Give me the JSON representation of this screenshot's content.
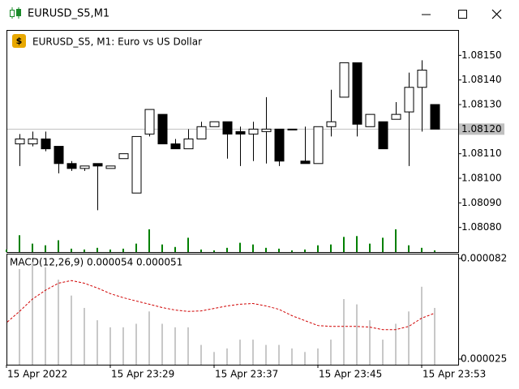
{
  "window": {
    "title": "EURUSD_S5,M1"
  },
  "chart_data": [
    {
      "type": "candlestick",
      "title": "EURUSD_S5, M1:  Euro vs US Dollar",
      "categories": [
        "15 Apr 2022",
        null,
        null,
        null,
        null,
        null,
        null,
        null,
        "15 Apr 23:29",
        null,
        null,
        null,
        null,
        null,
        null,
        null,
        "15 Apr 23:37",
        null,
        null,
        null,
        null,
        null,
        null,
        null,
        "15 Apr 23:45",
        null,
        null,
        null,
        null,
        null,
        null,
        null,
        "15 Apr 23:53",
        null
      ],
      "open": [
        1.0811,
        1.08114,
        1.08114,
        1.08116,
        1.08113,
        1.08106,
        1.08104,
        1.08106,
        1.08104,
        1.08108,
        1.08094,
        1.08118,
        1.08126,
        1.08114,
        1.08112,
        1.08116,
        1.08121,
        1.08123,
        1.08119,
        1.08118,
        1.08119,
        1.0812,
        1.0812,
        1.08107,
        1.08106,
        1.08121,
        1.08133,
        1.08147,
        1.08121,
        1.08123,
        1.08124,
        1.08127,
        1.08137,
        1.0813
      ],
      "high": [
        1.08114,
        1.08118,
        1.08119,
        1.08119,
        1.08113,
        1.08107,
        1.08105,
        1.08106,
        1.08105,
        1.0811,
        1.08117,
        1.08128,
        1.08126,
        1.08116,
        1.0812,
        1.08123,
        1.08123,
        1.08123,
        1.08121,
        1.08123,
        1.08133,
        1.0812,
        1.0812,
        1.08121,
        1.08121,
        1.08136,
        1.08147,
        1.08147,
        1.08126,
        1.08123,
        1.08131,
        1.08143,
        1.08148,
        1.0813
      ],
      "low": [
        1.0811,
        1.08105,
        1.08113,
        1.08111,
        1.08102,
        1.08103,
        1.08103,
        1.08087,
        1.08104,
        1.08108,
        1.08094,
        1.08117,
        1.08114,
        1.08112,
        1.08112,
        1.08116,
        1.08121,
        1.08108,
        1.08105,
        1.08107,
        1.08106,
        1.08105,
        1.0812,
        1.08106,
        1.08106,
        1.08117,
        1.08133,
        1.08117,
        1.08121,
        1.08112,
        1.08124,
        1.08105,
        1.08119,
        1.0812
      ],
      "close": [
        1.08114,
        1.08116,
        1.08116,
        1.08112,
        1.08106,
        1.08104,
        1.08105,
        1.08105,
        1.08105,
        1.0811,
        1.08117,
        1.08128,
        1.08114,
        1.08112,
        1.08116,
        1.08121,
        1.08123,
        1.08118,
        1.08118,
        1.0812,
        1.0812,
        1.08107,
        1.0812,
        1.08106,
        1.08121,
        1.08123,
        1.08147,
        1.08122,
        1.08126,
        1.08112,
        1.08126,
        1.08137,
        1.08144,
        1.0812
      ],
      "volume": [
        3,
        20,
        10,
        8,
        14,
        4,
        3,
        5,
        3,
        4,
        10,
        27,
        9,
        6,
        17,
        3,
        2,
        5,
        11,
        9,
        5,
        4,
        2,
        3,
        8,
        9,
        18,
        19,
        10,
        17,
        27,
        8,
        5,
        2
      ],
      "up_color": "#ffffff",
      "down_color": "#000000",
      "volume_color": "#008000",
      "ylim": [
        1.0807,
        1.0816
      ],
      "yticks": [
        {
          "value": 1.0815,
          "label": "1.08150"
        },
        {
          "value": 1.0814,
          "label": "1.08140"
        },
        {
          "value": 1.0813,
          "label": "1.08130"
        },
        {
          "value": 1.0812,
          "label": "1.08120"
        },
        {
          "value": 1.0811,
          "label": "1.08110"
        },
        {
          "value": 1.081,
          "label": "1.08100"
        },
        {
          "value": 1.0809,
          "label": "1.08090"
        },
        {
          "value": 1.0808,
          "label": "1.08080"
        }
      ],
      "price_label": {
        "value": 1.0812,
        "label": "1.08120"
      }
    },
    {
      "type": "macd",
      "title": "MACD(12,26,9) 0.000054 0.000051",
      "histogram": {
        "color": "#c8c8c8",
        "values": [
          7.2e-05,
          7.6e-05,
          8e-05,
          7.7e-05,
          7e-05,
          6.1e-05,
          5.4e-05,
          4.7e-05,
          4.3e-05,
          4.3e-05,
          4.5e-05,
          5.2e-05,
          4.5e-05,
          4.3e-05,
          4.3e-05,
          3.3e-05,
          2.9e-05,
          3.1e-05,
          3.6e-05,
          3.6e-05,
          3.3e-05,
          3.3e-05,
          3.1e-05,
          2.9e-05,
          3.1e-05,
          3.6e-05,
          5.9e-05,
          5.6e-05,
          4.7e-05,
          3.6e-05,
          4.5e-05,
          5.2e-05,
          6.6e-05,
          5.4e-05
        ]
      },
      "signal": {
        "color": "#d00000",
        "values": [
          4.6e-05,
          5.2e-05,
          5.9e-05,
          6.4e-05,
          6.8e-05,
          6.95e-05,
          6.8e-05,
          6.53e-05,
          6.21e-05,
          5.98e-05,
          5.79e-05,
          5.61e-05,
          5.42e-05,
          5.28e-05,
          5.2e-05,
          5.23e-05,
          5.37e-05,
          5.51e-05,
          5.61e-05,
          5.65e-05,
          5.51e-05,
          5.32e-05,
          4.96e-05,
          4.68e-05,
          4.4e-05,
          4.35e-05,
          4.35e-05,
          4.35e-05,
          4.31e-05,
          4.17e-05,
          4.17e-05,
          4.35e-05,
          4.82e-05,
          5.1e-05
        ]
      },
      "ylim": [
        2.18e-05,
        8.43e-05
      ],
      "yticks": [
        8.2e-05,
        2.5e-05
      ]
    }
  ]
}
